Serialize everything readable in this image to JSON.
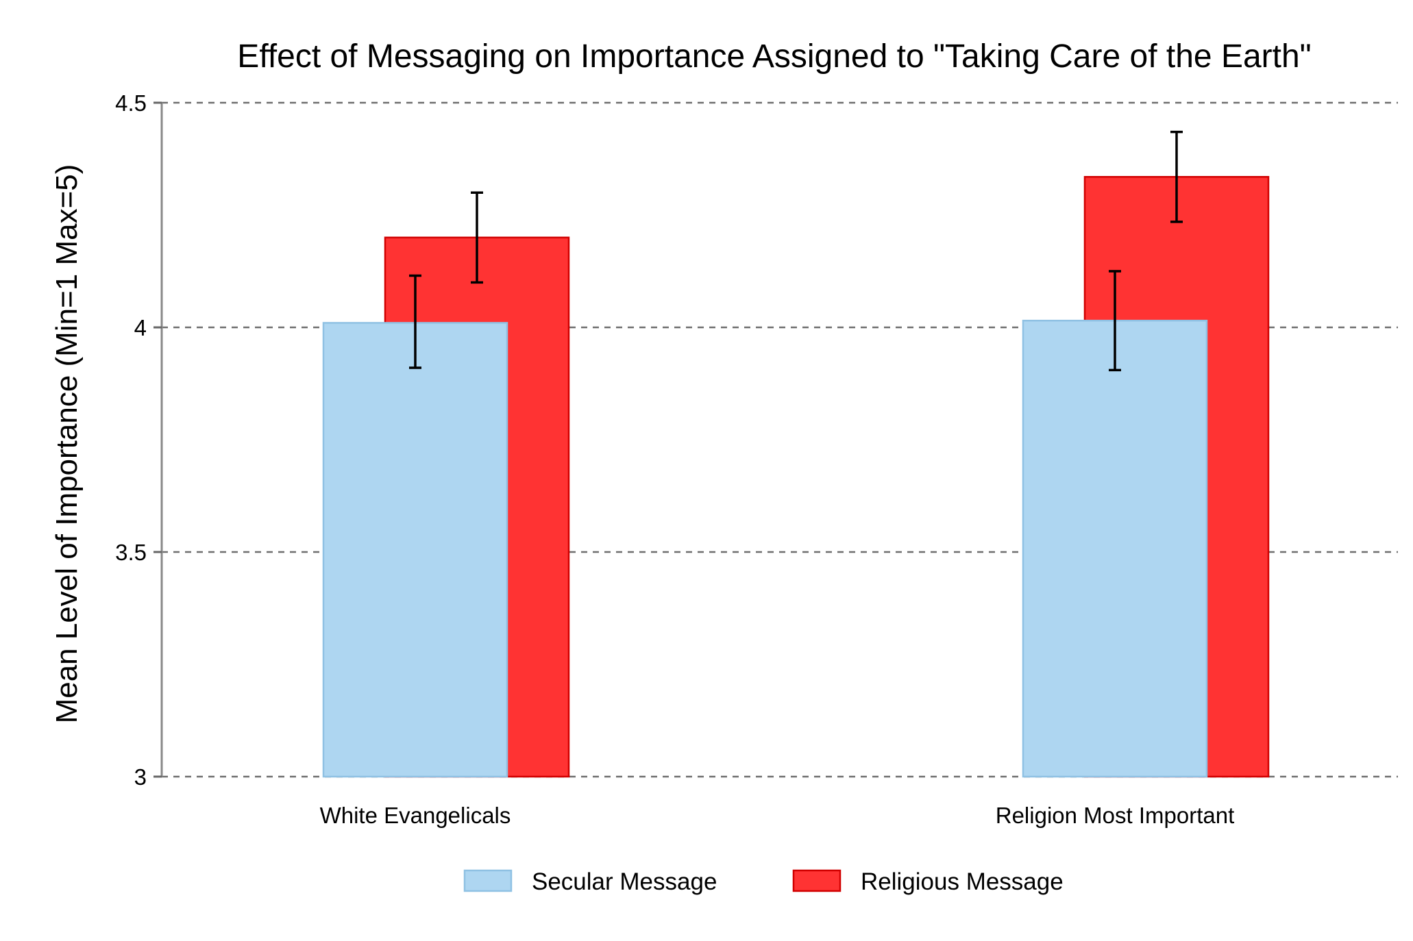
{
  "chart_data": {
    "type": "bar",
    "title": "Effect of Messaging on Importance Assigned to \"Taking Care of the Earth\"",
    "xlabel": "",
    "ylabel": "Mean Level of Importance (Min=1 Max=5)",
    "ylim": [
      3,
      4.5
    ],
    "yticks": [
      3,
      3.5,
      4,
      4.5
    ],
    "ytick_labels": [
      "3",
      "3.5",
      "4",
      "4.5"
    ],
    "categories": [
      "White Evangelicals",
      "Religion Most Important"
    ],
    "series": [
      {
        "name": "Secular Message",
        "values": [
          4.01,
          4.015
        ],
        "error_low": [
          3.91,
          3.905
        ],
        "error_high": [
          4.115,
          4.125
        ],
        "color": "#aed6f1"
      },
      {
        "name": "Religious Message",
        "values": [
          4.2,
          4.335
        ],
        "error_low": [
          4.1,
          4.235
        ],
        "error_high": [
          4.3,
          4.435
        ],
        "color": "#ff3333"
      }
    ],
    "grid": true,
    "legend_position": "bottom"
  }
}
